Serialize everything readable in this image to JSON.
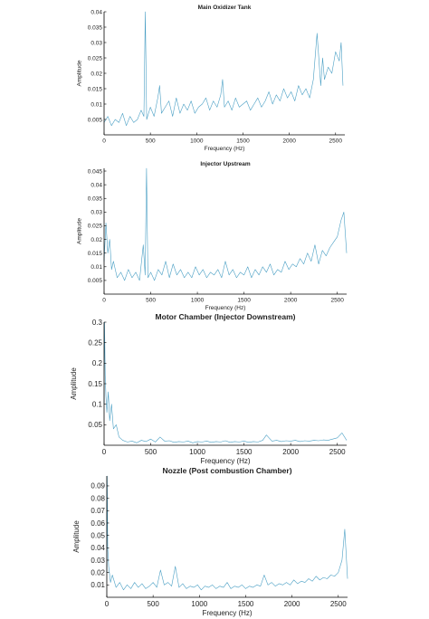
{
  "chart_data": [
    {
      "type": "line",
      "title": "Main Oxidizer Tank",
      "xlabel": "Frequency (Hz)",
      "ylabel": "Amplitude",
      "xlim": [
        0,
        2600
      ],
      "ylim": [
        0,
        0.04
      ],
      "xticks": [
        0,
        500,
        1000,
        1500,
        2000,
        2500
      ],
      "yticks": [
        0.005,
        0.01,
        0.015,
        0.02,
        0.025,
        0.03,
        0.035,
        0.04
      ],
      "xtick_labels": [
        "0",
        "500",
        "1000",
        "1500",
        "2000",
        "2500"
      ],
      "ytick_labels": [
        "0.005",
        "0.01",
        "0.015",
        "0.02",
        "0.025",
        "0.03",
        "0.035",
        "0.04"
      ],
      "grid": false,
      "series": [
        {
          "color": "#4a9fc4",
          "x": [
            0,
            40,
            80,
            120,
            160,
            200,
            240,
            280,
            320,
            360,
            400,
            430,
            445,
            460,
            500,
            540,
            580,
            600,
            620,
            660,
            700,
            740,
            780,
            820,
            860,
            900,
            940,
            980,
            1020,
            1060,
            1100,
            1140,
            1180,
            1220,
            1260,
            1280,
            1300,
            1340,
            1380,
            1420,
            1460,
            1500,
            1540,
            1580,
            1620,
            1660,
            1700,
            1740,
            1780,
            1820,
            1860,
            1900,
            1940,
            1980,
            2020,
            2060,
            2100,
            2140,
            2180,
            2220,
            2260,
            2300,
            2340,
            2360,
            2380,
            2420,
            2460,
            2500,
            2540,
            2560,
            2580
          ],
          "y": [
            0.004,
            0.006,
            0.003,
            0.005,
            0.004,
            0.007,
            0.003,
            0.006,
            0.004,
            0.005,
            0.008,
            0.006,
            0.04,
            0.005,
            0.009,
            0.006,
            0.012,
            0.016,
            0.007,
            0.009,
            0.011,
            0.006,
            0.012,
            0.007,
            0.01,
            0.008,
            0.011,
            0.007,
            0.009,
            0.01,
            0.012,
            0.008,
            0.011,
            0.009,
            0.013,
            0.018,
            0.009,
            0.011,
            0.008,
            0.012,
            0.009,
            0.01,
            0.011,
            0.008,
            0.01,
            0.012,
            0.009,
            0.011,
            0.014,
            0.01,
            0.013,
            0.011,
            0.015,
            0.012,
            0.014,
            0.011,
            0.016,
            0.013,
            0.015,
            0.012,
            0.018,
            0.033,
            0.016,
            0.025,
            0.018,
            0.022,
            0.02,
            0.027,
            0.024,
            0.03,
            0.016
          ]
        }
      ]
    },
    {
      "type": "line",
      "title": "Injector Upstream",
      "xlabel": "Frequency (Hz)",
      "ylabel": "Amplitude",
      "xlim": [
        0,
        2600
      ],
      "ylim": [
        0,
        0.046
      ],
      "xticks": [
        0,
        500,
        1000,
        1500,
        2000,
        2500
      ],
      "yticks": [
        0.005,
        0.01,
        0.015,
        0.02,
        0.025,
        0.03,
        0.035,
        0.04,
        0.045
      ],
      "xtick_labels": [
        "0",
        "500",
        "1000",
        "1500",
        "2000",
        "2500"
      ],
      "ytick_labels": [
        "0.005",
        "0.01",
        "0.015",
        "0.02",
        "0.025",
        "0.03",
        "0.035",
        "0.04",
        "0.045"
      ],
      "grid": false,
      "series": [
        {
          "color": "#4a9fc4",
          "x": [
            0,
            20,
            40,
            60,
            80,
            100,
            140,
            180,
            220,
            260,
            300,
            340,
            380,
            420,
            440,
            455,
            470,
            500,
            540,
            580,
            620,
            660,
            700,
            740,
            780,
            820,
            860,
            900,
            940,
            980,
            1020,
            1060,
            1100,
            1140,
            1180,
            1220,
            1260,
            1300,
            1340,
            1380,
            1420,
            1460,
            1500,
            1540,
            1580,
            1620,
            1660,
            1700,
            1740,
            1780,
            1820,
            1860,
            1900,
            1940,
            1980,
            2020,
            2060,
            2100,
            2140,
            2180,
            2220,
            2260,
            2300,
            2340,
            2380,
            2420,
            2460,
            2500,
            2540,
            2570,
            2600
          ],
          "y": [
            0.012,
            0.026,
            0.015,
            0.02,
            0.009,
            0.012,
            0.006,
            0.008,
            0.005,
            0.009,
            0.006,
            0.008,
            0.005,
            0.018,
            0.007,
            0.046,
            0.006,
            0.008,
            0.005,
            0.009,
            0.007,
            0.012,
            0.006,
            0.011,
            0.007,
            0.009,
            0.006,
            0.008,
            0.006,
            0.01,
            0.007,
            0.009,
            0.006,
            0.008,
            0.007,
            0.009,
            0.006,
            0.012,
            0.007,
            0.009,
            0.006,
            0.008,
            0.007,
            0.01,
            0.006,
            0.009,
            0.007,
            0.01,
            0.008,
            0.011,
            0.007,
            0.009,
            0.008,
            0.012,
            0.009,
            0.011,
            0.01,
            0.013,
            0.011,
            0.015,
            0.012,
            0.018,
            0.011,
            0.016,
            0.014,
            0.017,
            0.019,
            0.021,
            0.027,
            0.03,
            0.015
          ]
        }
      ]
    },
    {
      "type": "line",
      "title": "Motor Chamber (Injector Downstream)",
      "xlabel": "Frequency (Hz)",
      "ylabel": "Amplitude",
      "xlim": [
        0,
        2600
      ],
      "ylim": [
        0,
        0.3
      ],
      "xticks": [
        0,
        500,
        1000,
        1500,
        2000,
        2500
      ],
      "yticks": [
        0.05,
        0.1,
        0.15,
        0.2,
        0.25,
        0.3
      ],
      "xtick_labels": [
        "0",
        "500",
        "1000",
        "1500",
        "2000",
        "2500"
      ],
      "ytick_labels": [
        "0.05",
        "0.1",
        "0.15",
        "0.2",
        "0.25",
        "0.3"
      ],
      "grid": false,
      "series": [
        {
          "color": "#4a9fc4",
          "x": [
            0,
            5,
            12,
            20,
            30,
            45,
            60,
            80,
            100,
            130,
            160,
            200,
            250,
            300,
            350,
            400,
            450,
            500,
            550,
            600,
            650,
            700,
            750,
            800,
            850,
            900,
            950,
            1000,
            1050,
            1100,
            1150,
            1200,
            1250,
            1300,
            1350,
            1400,
            1450,
            1500,
            1550,
            1600,
            1650,
            1700,
            1740,
            1800,
            1850,
            1900,
            1950,
            2000,
            2050,
            2100,
            2150,
            2200,
            2250,
            2300,
            2350,
            2400,
            2450,
            2500,
            2550,
            2600
          ],
          "y": [
            0.1,
            0.3,
            0.17,
            0.12,
            0.08,
            0.13,
            0.06,
            0.1,
            0.04,
            0.05,
            0.02,
            0.012,
            0.008,
            0.01,
            0.006,
            0.012,
            0.009,
            0.015,
            0.008,
            0.02,
            0.01,
            0.011,
            0.007,
            0.009,
            0.008,
            0.01,
            0.006,
            0.009,
            0.008,
            0.01,
            0.007,
            0.009,
            0.008,
            0.011,
            0.007,
            0.009,
            0.008,
            0.01,
            0.007,
            0.009,
            0.008,
            0.012,
            0.025,
            0.01,
            0.012,
            0.009,
            0.011,
            0.01,
            0.012,
            0.009,
            0.011,
            0.01,
            0.012,
            0.011,
            0.013,
            0.012,
            0.015,
            0.018,
            0.03,
            0.012
          ]
        }
      ]
    },
    {
      "type": "line",
      "title": "Nozzle (Post combustion Chamber)",
      "xlabel": "Frequency (Hz)",
      "ylabel": "Amplitude",
      "xlim": [
        0,
        2600
      ],
      "ylim": [
        0,
        0.098
      ],
      "xticks": [
        0,
        500,
        1000,
        1500,
        2000,
        2500
      ],
      "yticks": [
        0.01,
        0.02,
        0.03,
        0.04,
        0.05,
        0.06,
        0.07,
        0.08,
        0.09
      ],
      "xtick_labels": [
        "0",
        "500",
        "1000",
        "1500",
        "2000",
        "2500"
      ],
      "ytick_labels": [
        "0.01",
        "0.02",
        "0.03",
        "0.04",
        "0.05",
        "0.06",
        "0.07",
        "0.08",
        "0.09"
      ],
      "grid": false,
      "series": [
        {
          "color": "#4a9fc4",
          "x": [
            0,
            4,
            10,
            20,
            40,
            60,
            100,
            140,
            180,
            220,
            260,
            300,
            340,
            380,
            420,
            460,
            500,
            540,
            580,
            620,
            660,
            700,
            740,
            780,
            820,
            860,
            900,
            940,
            980,
            1020,
            1060,
            1100,
            1140,
            1180,
            1220,
            1260,
            1300,
            1340,
            1380,
            1420,
            1460,
            1500,
            1540,
            1580,
            1620,
            1660,
            1700,
            1740,
            1780,
            1820,
            1860,
            1900,
            1940,
            1980,
            2020,
            2060,
            2100,
            2140,
            2180,
            2220,
            2260,
            2300,
            2340,
            2380,
            2420,
            2460,
            2500,
            2540,
            2570,
            2600
          ],
          "y": [
            0.02,
            0.098,
            0.04,
            0.025,
            0.012,
            0.018,
            0.008,
            0.012,
            0.006,
            0.01,
            0.007,
            0.012,
            0.008,
            0.011,
            0.007,
            0.009,
            0.012,
            0.008,
            0.022,
            0.01,
            0.012,
            0.009,
            0.025,
            0.008,
            0.011,
            0.007,
            0.009,
            0.008,
            0.01,
            0.006,
            0.009,
            0.008,
            0.01,
            0.007,
            0.009,
            0.008,
            0.012,
            0.007,
            0.009,
            0.008,
            0.01,
            0.007,
            0.009,
            0.008,
            0.01,
            0.009,
            0.018,
            0.01,
            0.012,
            0.009,
            0.011,
            0.01,
            0.012,
            0.01,
            0.014,
            0.011,
            0.013,
            0.012,
            0.015,
            0.013,
            0.017,
            0.014,
            0.016,
            0.015,
            0.018,
            0.017,
            0.02,
            0.03,
            0.055,
            0.015
          ]
        }
      ]
    }
  ]
}
